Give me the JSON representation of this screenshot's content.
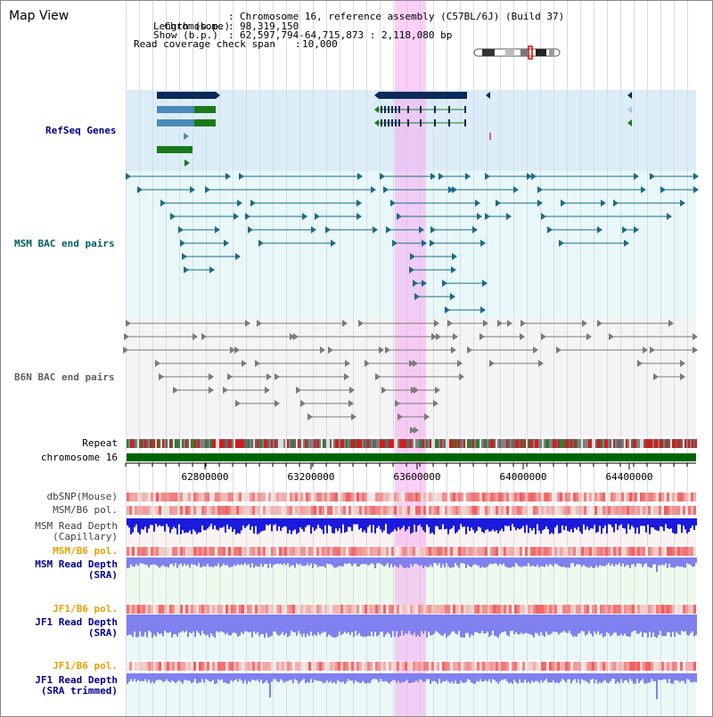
{
  "view_title": "Map View",
  "header": {
    "chromosome_label": "Chromosome",
    "chromosome_value": "Chromosome 16, reference assembly (C57BL/6J) (Build 37)",
    "length_label": "Length (b.p.)",
    "length_value": "98,319,150",
    "show_label": "Show (b.p.)",
    "show_value": "62,597,794-64,715,873 : 2,118,080 bp",
    "coverage_label": "Read coverage check span",
    "coverage_value": "10,000"
  },
  "tracks": {
    "refseq": "RefSeq Genes",
    "msm_bac": "MSM BAC end pairs",
    "b6n_bac": "B6N BAC end pairs",
    "repeat": "Repeat",
    "chromosome": "chromosome 16",
    "dbsnp": "dbSNP(Mouse)",
    "msm_b6_pol": "MSM/B6 pol.",
    "msm_read_depth_cap_1": "MSM Read Depth",
    "msm_read_depth_cap_2": "(Capillary)",
    "msm_b6_pol_2": "MSM/B6 pol.",
    "msm_read_depth_sra_1": "MSM Read Depth",
    "msm_read_depth_sra_2": "(SRA)",
    "jf1_b6_pol": "JF1/B6 pol.",
    "jf1_read_depth_1": "JF1 Read Depth",
    "jf1_read_depth_2": "(SRA)",
    "jf1_b6_pol_2": "JF1/B6 pol.",
    "jf1_trim_1": "JF1 Read Depth",
    "jf1_trim_2": "(SRA trimmed)"
  },
  "axis": {
    "ticks": [
      "62800000",
      "63200000",
      "63600000",
      "64000000",
      "64400000"
    ]
  },
  "colors": {
    "refseq_bg": "#dcedf8",
    "msm_bg": "#e8f8f8",
    "b6n_bg": "#f4f4f4",
    "gene_dark": "#0c2a5a",
    "gene_green": "#1a7a1a",
    "gene_blue": "#4a8ab8",
    "msm_pair": "#1d6a8a",
    "b6n_pair": "#7a7a7a",
    "chromosome_bar": "#006400",
    "highlight": "#f5aaf0",
    "label_blue": "#00008b",
    "label_orange": "#e8a000",
    "label_teal": "#006060",
    "depth_dark": "#1a1adc",
    "depth_light": "#8080ee"
  }
}
